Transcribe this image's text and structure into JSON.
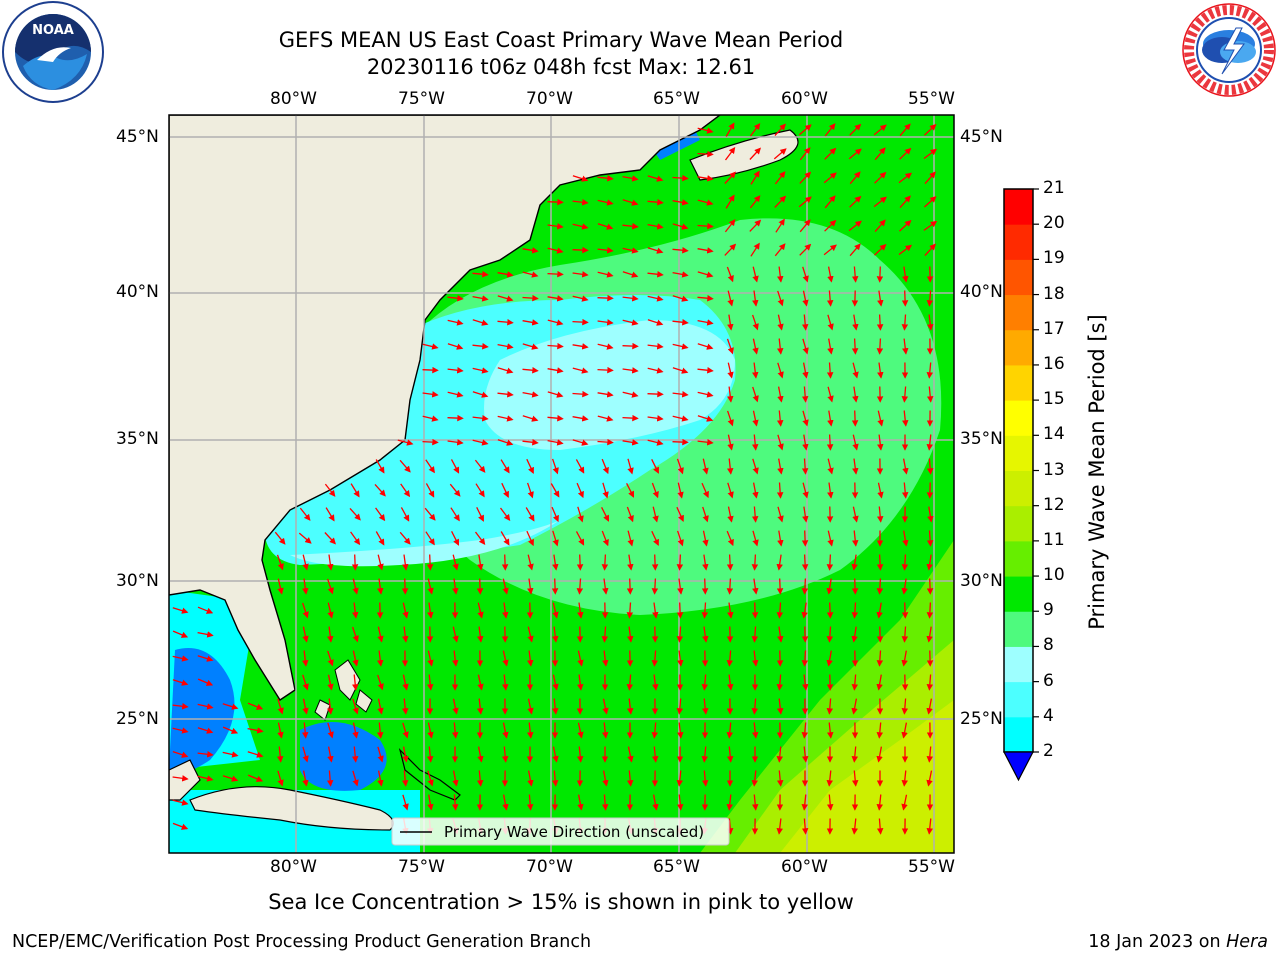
{
  "header": {
    "title_line1": "GEFS MEAN US East Coast Primary Wave Mean Period",
    "title_line2": "20230116 t06z 048h fcst   Max: 12.61"
  },
  "logos": {
    "noaa_text": "NOAA",
    "noaa_ring_text": "NATIONAL OCEANIC AND ATMOSPHERIC ADMINISTRATION · U.S. DEPARTMENT OF COMMERCE",
    "nws_ring_text": "NATIONAL WEATHER SERVICE"
  },
  "map": {
    "lon_labels": [
      "80°W",
      "75°W",
      "70°W",
      "65°W",
      "60°W",
      "55°W"
    ],
    "lat_labels": [
      "45°N",
      "40°N",
      "35°N",
      "30°N",
      "25°N"
    ],
    "legend_label": "Primary Wave Direction (unscaled)",
    "arrow_color": "#ff0000",
    "land_color": "#efedde"
  },
  "colorbar": {
    "title": "Primary Wave Mean Period [s]",
    "labels": [
      "21",
      "20",
      "19",
      "18",
      "17",
      "16",
      "15",
      "14",
      "13",
      "12",
      "11",
      "10",
      "9",
      "8",
      "6",
      "4",
      "2"
    ],
    "colors": [
      "#ff0000",
      "#ff2a00",
      "#ff5500",
      "#ff7f00",
      "#ffaa00",
      "#ffd400",
      "#ffff00",
      "#e6f600",
      "#ccef00",
      "#aaee00",
      "#66ee00",
      "#00e800",
      "#4efa7e",
      "#9effff",
      "#4cffff",
      "#00ffff",
      "#0080ff"
    ],
    "extend_color": "#0000ff"
  },
  "caption": "Sea Ice Concentration > 15% is shown in pink to yellow",
  "footer": {
    "left": "NCEP/EMC/Verification Post Processing Product Generation Branch",
    "right_prefix": "18 Jan 2023 on ",
    "right_italic": "Hera"
  }
}
